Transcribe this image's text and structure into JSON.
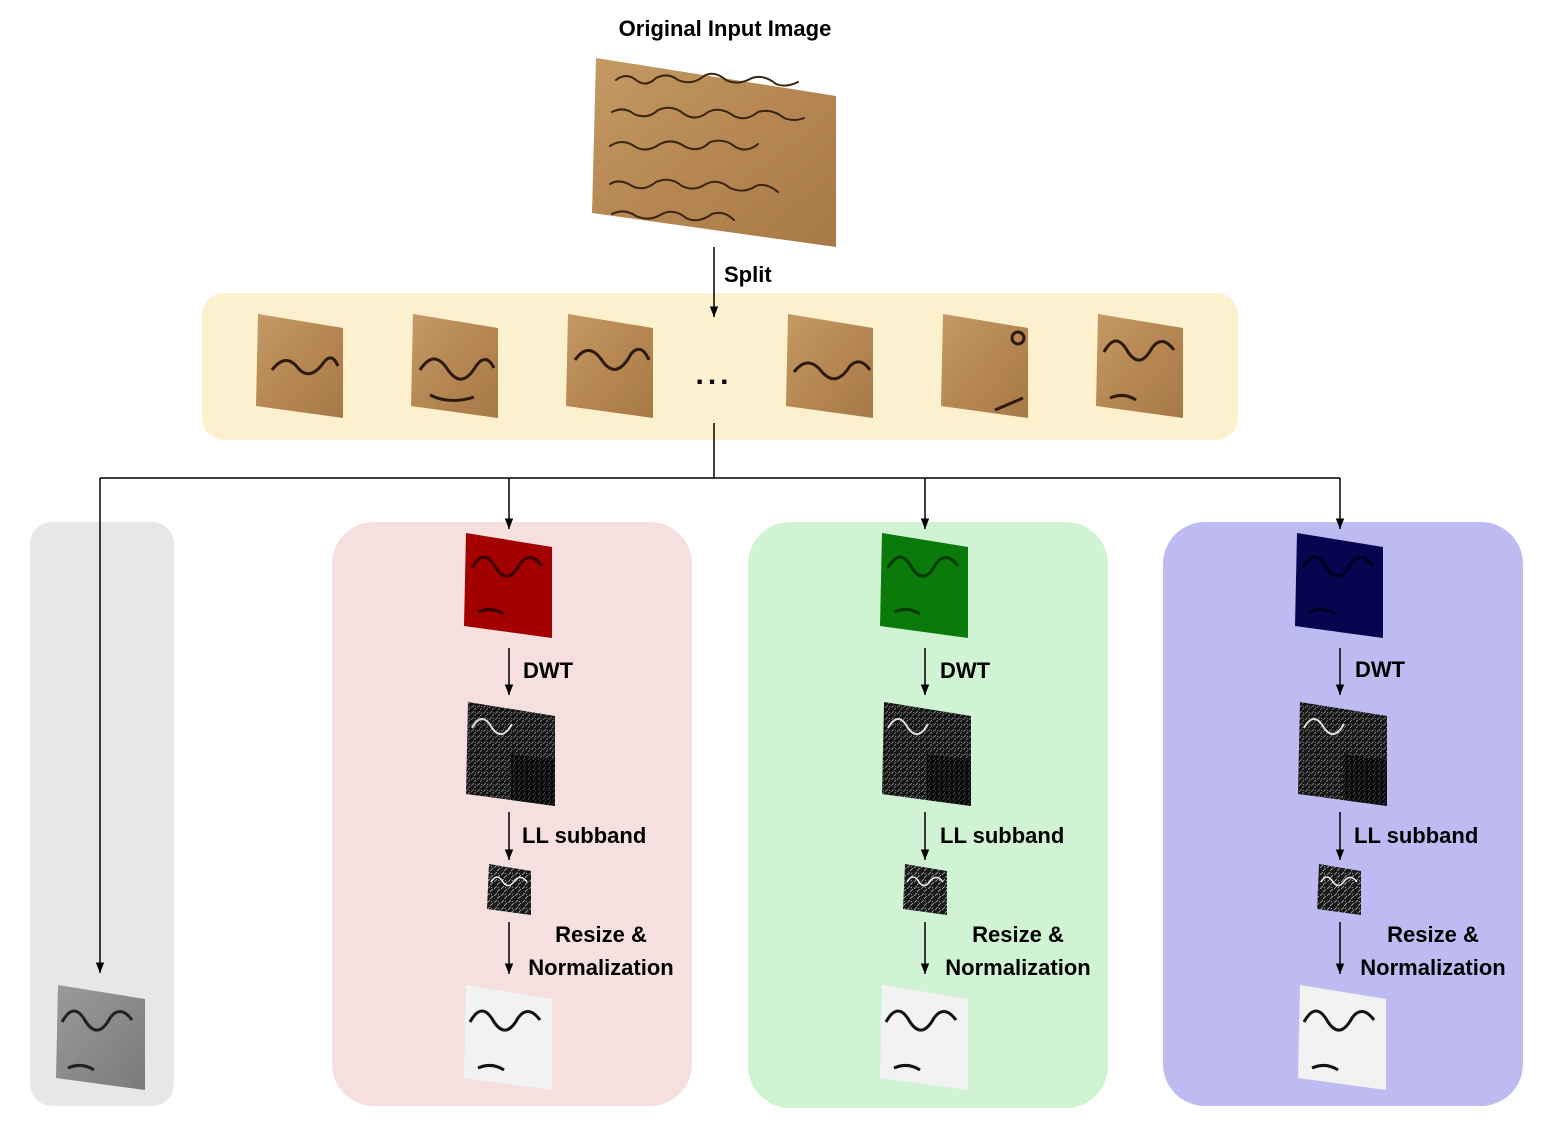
{
  "title": "Original Input Image",
  "split_label": "Split",
  "ellipsis": "...",
  "colors": {
    "strip": "#fdf0cf",
    "gray_panel": "#e7e7e7",
    "red_panel": "#f5dfdf",
    "green_panel": "#cff3d3",
    "blue_panel": "#bdbbf2",
    "parchment": "#b98a55"
  },
  "branches": [
    {
      "id": "red",
      "dwt_label": "DWT",
      "ll_label": "LL subband",
      "resize_label_1": "Resize &",
      "resize_label_2": "Normalization"
    },
    {
      "id": "green",
      "dwt_label": "DWT",
      "ll_label": "LL subband",
      "resize_label_1": "Resize &",
      "resize_label_2": "Normalization"
    },
    {
      "id": "blue",
      "dwt_label": "DWT",
      "ll_label": "LL subband",
      "resize_label_1": "Resize &",
      "resize_label_2": "Normalization"
    }
  ]
}
